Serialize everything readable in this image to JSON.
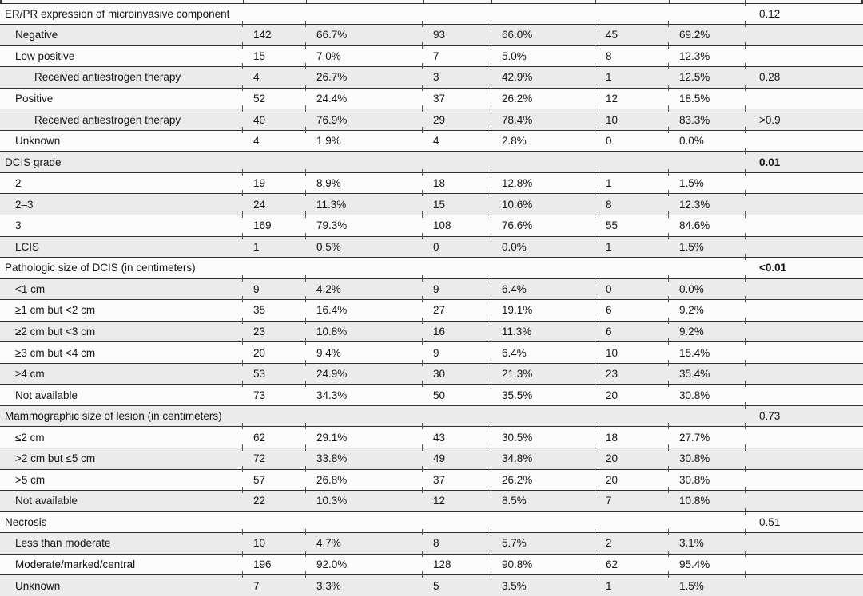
{
  "table": {
    "colors": {
      "row_base": "#fcfcfc",
      "row_alt": "#ebebeb",
      "rule": "#2f2f2f",
      "text": "#141414"
    },
    "rows": [
      {
        "label": "ER/PR expression of microinvasive component",
        "indent": 0,
        "section": true,
        "p": "0.12",
        "p_bold": false
      },
      {
        "label": "Negative",
        "indent": 1,
        "section": false,
        "n1": "142",
        "pct1": "66.7%",
        "n2": "93",
        "pct2": "66.0%",
        "n3": "45",
        "pct3": "69.2%",
        "p": "",
        "p_bold": false
      },
      {
        "label": "Low positive",
        "indent": 1,
        "section": false,
        "n1": "15",
        "pct1": "7.0%",
        "n2": "7",
        "pct2": "5.0%",
        "n3": "8",
        "pct3": "12.3%",
        "p": "",
        "p_bold": false
      },
      {
        "label": "Received antiestrogen therapy",
        "indent": 2,
        "section": false,
        "n1": "4",
        "pct1": "26.7%",
        "n2": "3",
        "pct2": "42.9%",
        "n3": "1",
        "pct3": "12.5%",
        "p": "0.28",
        "p_bold": false
      },
      {
        "label": "Positive",
        "indent": 1,
        "section": false,
        "n1": "52",
        "pct1": "24.4%",
        "n2": "37",
        "pct2": "26.2%",
        "n3": "12",
        "pct3": "18.5%",
        "p": "",
        "p_bold": false
      },
      {
        "label": "Received antiestrogen therapy",
        "indent": 2,
        "section": false,
        "n1": "40",
        "pct1": "76.9%",
        "n2": "29",
        "pct2": "78.4%",
        "n3": "10",
        "pct3": "83.3%",
        "p": ">0.9",
        "p_bold": false
      },
      {
        "label": "Unknown",
        "indent": 1,
        "section": false,
        "n1": "4",
        "pct1": "1.9%",
        "n2": "4",
        "pct2": "2.8%",
        "n3": "0",
        "pct3": "0.0%",
        "p": "",
        "p_bold": false
      },
      {
        "label": "DCIS grade",
        "indent": 0,
        "section": true,
        "p": "0.01",
        "p_bold": true
      },
      {
        "label": "2",
        "indent": 1,
        "section": false,
        "n1": "19",
        "pct1": "8.9%",
        "n2": "18",
        "pct2": "12.8%",
        "n3": "1",
        "pct3": "1.5%",
        "p": "",
        "p_bold": false
      },
      {
        "label": "2–3",
        "indent": 1,
        "section": false,
        "n1": "24",
        "pct1": "11.3%",
        "n2": "15",
        "pct2": "10.6%",
        "n3": "8",
        "pct3": "12.3%",
        "p": "",
        "p_bold": false
      },
      {
        "label": "3",
        "indent": 1,
        "section": false,
        "n1": "169",
        "pct1": "79.3%",
        "n2": "108",
        "pct2": "76.6%",
        "n3": "55",
        "pct3": "84.6%",
        "p": "",
        "p_bold": false
      },
      {
        "label": "LCIS",
        "indent": 1,
        "section": false,
        "n1": "1",
        "pct1": "0.5%",
        "n2": "0",
        "pct2": "0.0%",
        "n3": "1",
        "pct3": "1.5%",
        "p": "",
        "p_bold": false
      },
      {
        "label": "Pathologic size of DCIS (in centimeters)",
        "indent": 0,
        "section": true,
        "p": "<0.01",
        "p_bold": true
      },
      {
        "label": "<1 cm",
        "indent": 1,
        "section": false,
        "n1": "9",
        "pct1": "4.2%",
        "n2": "9",
        "pct2": "6.4%",
        "n3": "0",
        "pct3": "0.0%",
        "p": "",
        "p_bold": false
      },
      {
        "label": "≥1 cm but <2 cm",
        "indent": 1,
        "section": false,
        "n1": "35",
        "pct1": "16.4%",
        "n2": "27",
        "pct2": "19.1%",
        "n3": "6",
        "pct3": "9.2%",
        "p": "",
        "p_bold": false
      },
      {
        "label": "≥2 cm but <3 cm",
        "indent": 1,
        "section": false,
        "n1": "23",
        "pct1": "10.8%",
        "n2": "16",
        "pct2": "11.3%",
        "n3": "6",
        "pct3": "9.2%",
        "p": "",
        "p_bold": false
      },
      {
        "label": "≥3 cm but <4 cm",
        "indent": 1,
        "section": false,
        "n1": "20",
        "pct1": "9.4%",
        "n2": "9",
        "pct2": "6.4%",
        "n3": "10",
        "pct3": "15.4%",
        "p": "",
        "p_bold": false
      },
      {
        "label": "≥4 cm",
        "indent": 1,
        "section": false,
        "n1": "53",
        "pct1": "24.9%",
        "n2": "30",
        "pct2": "21.3%",
        "n3": "23",
        "pct3": "35.4%",
        "p": "",
        "p_bold": false
      },
      {
        "label": "Not available",
        "indent": 1,
        "section": false,
        "n1": "73",
        "pct1": "34.3%",
        "n2": "50",
        "pct2": "35.5%",
        "n3": "20",
        "pct3": "30.8%",
        "p": "",
        "p_bold": false
      },
      {
        "label": "Mammographic size of lesion (in centimeters)",
        "indent": 0,
        "section": true,
        "p": "0.73",
        "p_bold": false
      },
      {
        "label": "≤2 cm",
        "indent": 1,
        "section": false,
        "n1": "62",
        "pct1": "29.1%",
        "n2": "43",
        "pct2": "30.5%",
        "n3": "18",
        "pct3": "27.7%",
        "p": "",
        "p_bold": false
      },
      {
        "label": ">2 cm but ≤5 cm",
        "indent": 1,
        "section": false,
        "n1": "72",
        "pct1": "33.8%",
        "n2": "49",
        "pct2": "34.8%",
        "n3": "20",
        "pct3": "30.8%",
        "p": "",
        "p_bold": false
      },
      {
        "label": ">5 cm",
        "indent": 1,
        "section": false,
        "n1": "57",
        "pct1": "26.8%",
        "n2": "37",
        "pct2": "26.2%",
        "n3": "20",
        "pct3": "30.8%",
        "p": "",
        "p_bold": false
      },
      {
        "label": "Not available",
        "indent": 1,
        "section": false,
        "n1": "22",
        "pct1": "10.3%",
        "n2": "12",
        "pct2": "8.5%",
        "n3": "7",
        "pct3": "10.8%",
        "p": "",
        "p_bold": false
      },
      {
        "label": "Necrosis",
        "indent": 0,
        "section": true,
        "p": "0.51",
        "p_bold": false
      },
      {
        "label": "Less than moderate",
        "indent": 1,
        "section": false,
        "n1": "10",
        "pct1": "4.7%",
        "n2": "8",
        "pct2": "5.7%",
        "n3": "2",
        "pct3": "3.1%",
        "p": "",
        "p_bold": false
      },
      {
        "label": "Moderate/marked/central",
        "indent": 1,
        "section": false,
        "n1": "196",
        "pct1": "92.0%",
        "n2": "128",
        "pct2": "90.8%",
        "n3": "62",
        "pct3": "95.4%",
        "p": "",
        "p_bold": false
      },
      {
        "label": "Unknown",
        "indent": 1,
        "section": false,
        "n1": "7",
        "pct1": "3.3%",
        "n2": "5",
        "pct2": "3.5%",
        "n3": "1",
        "pct3": "1.5%",
        "p": "",
        "p_bold": false
      }
    ]
  }
}
